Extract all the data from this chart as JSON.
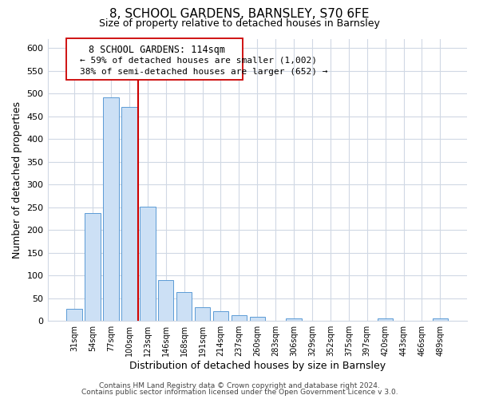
{
  "title": "8, SCHOOL GARDENS, BARNSLEY, S70 6FE",
  "subtitle": "Size of property relative to detached houses in Barnsley",
  "xlabel": "Distribution of detached houses by size in Barnsley",
  "ylabel": "Number of detached properties",
  "bar_labels": [
    "31sqm",
    "54sqm",
    "77sqm",
    "100sqm",
    "123sqm",
    "146sqm",
    "168sqm",
    "191sqm",
    "214sqm",
    "237sqm",
    "260sqm",
    "283sqm",
    "306sqm",
    "329sqm",
    "352sqm",
    "375sqm",
    "397sqm",
    "420sqm",
    "443sqm",
    "466sqm",
    "489sqm"
  ],
  "bar_values": [
    26,
    237,
    491,
    471,
    251,
    90,
    63,
    31,
    22,
    13,
    10,
    0,
    5,
    0,
    0,
    0,
    0,
    5,
    0,
    0,
    5
  ],
  "bar_color": "#cce0f5",
  "bar_edge_color": "#5b9bd5",
  "vline_color": "#cc0000",
  "vline_index": 4,
  "ylim": [
    0,
    620
  ],
  "yticks": [
    0,
    50,
    100,
    150,
    200,
    250,
    300,
    350,
    400,
    450,
    500,
    550,
    600
  ],
  "annotation_title": "8 SCHOOL GARDENS: 114sqm",
  "annotation_line1": "← 59% of detached houses are smaller (1,002)",
  "annotation_line2": "38% of semi-detached houses are larger (652) →",
  "footer_line1": "Contains HM Land Registry data © Crown copyright and database right 2024.",
  "footer_line2": "Contains public sector information licensed under the Open Government Licence v 3.0.",
  "grid_color": "#d0d8e4",
  "background_color": "#ffffff"
}
